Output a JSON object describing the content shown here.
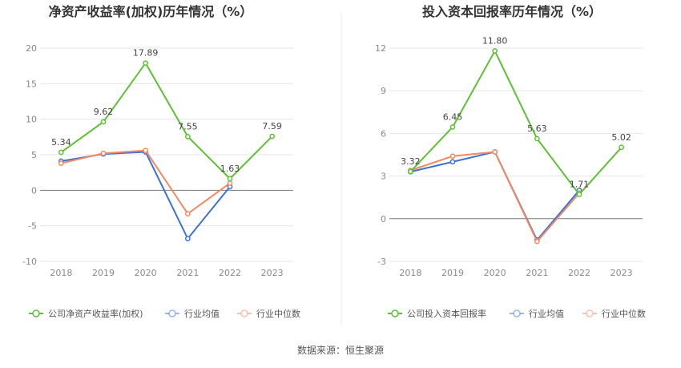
{
  "source": "数据来源：恒生聚源",
  "chart_data": [
    {
      "type": "line",
      "title": "净资产收益率(加权)历年情况（%）",
      "xlabel": "",
      "ylabel": "",
      "categories": [
        "2018",
        "2019",
        "2020",
        "2021",
        "2022",
        "2023"
      ],
      "ylim": [
        -10,
        20
      ],
      "yticks": [
        "20",
        "15",
        "10",
        "5",
        "0",
        "-5",
        "-10"
      ],
      "grid": true,
      "legend_position": "bottom",
      "series": [
        {
          "name": "公司净资产收益率(加权)",
          "color": "#5cc234",
          "values": [
            5.34,
            9.62,
            17.89,
            7.55,
            1.63,
            7.59
          ],
          "labels": [
            "5.34",
            "9.62",
            "17.89",
            "7.55",
            "1.63",
            "7.59"
          ]
        },
        {
          "name": "行业均值",
          "color": "#3b72d6",
          "values": [
            4.1,
            5.1,
            5.4,
            -6.8,
            0.5,
            null
          ]
        },
        {
          "name": "行业中位数",
          "color": "#f28a63",
          "values": [
            3.8,
            5.2,
            5.6,
            -3.3,
            1.0,
            null
          ]
        }
      ]
    },
    {
      "type": "line",
      "title": "投入资本回报率历年情况（%）",
      "xlabel": "",
      "ylabel": "",
      "categories": [
        "2018",
        "2019",
        "2020",
        "2021",
        "2022",
        "2023"
      ],
      "ylim": [
        -3,
        12
      ],
      "yticks": [
        "12",
        "9",
        "6",
        "3",
        "0",
        "-3"
      ],
      "grid": true,
      "legend_position": "bottom",
      "series": [
        {
          "name": "公司投入资本回报率",
          "color": "#5cc234",
          "values": [
            3.32,
            6.45,
            11.8,
            5.63,
            1.71,
            5.02
          ],
          "labels": [
            "3.32",
            "6.45",
            "11.80",
            "5.63",
            "1.71",
            "5.02"
          ]
        },
        {
          "name": "行业均值",
          "color": "#3b72d6",
          "values": [
            3.3,
            4.0,
            4.7,
            -1.5,
            2.0,
            null
          ]
        },
        {
          "name": "行业中位数",
          "color": "#f28a63",
          "values": [
            3.4,
            4.4,
            4.7,
            -1.6,
            1.8,
            null
          ]
        }
      ]
    }
  ]
}
